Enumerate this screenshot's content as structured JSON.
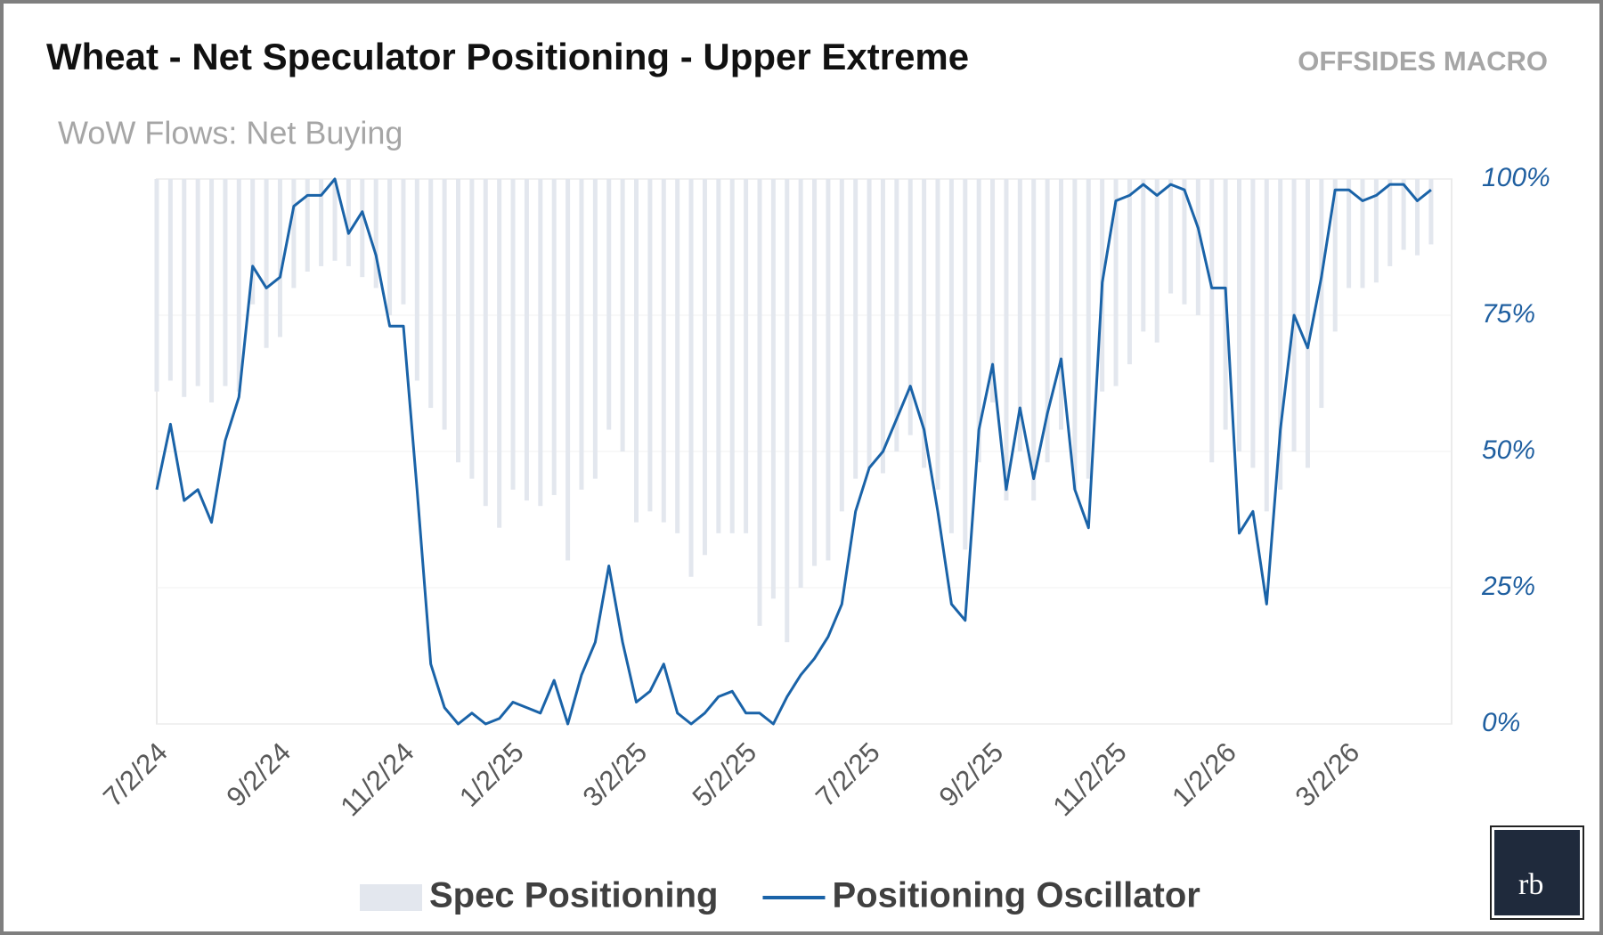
{
  "chart_data": {
    "type": "combo",
    "title": "Wheat - Net Speculator Positioning - Upper Extreme",
    "brand": "OFFSIDES MACRO",
    "subtitle": "WoW Flows: Net Buying",
    "logo": "rb",
    "categories": [
      "7/2/24",
      null,
      null,
      null,
      null,
      null,
      null,
      null,
      null,
      "9/2/24",
      null,
      null,
      null,
      null,
      null,
      null,
      null,
      null,
      "11/2/24",
      null,
      null,
      null,
      null,
      null,
      null,
      null,
      "1/2/25",
      null,
      null,
      null,
      null,
      null,
      null,
      null,
      null,
      "3/2/25",
      null,
      null,
      null,
      null,
      null,
      null,
      null,
      "5/2/25",
      null,
      null,
      null,
      null,
      null,
      null,
      null,
      null,
      "7/2/25",
      null,
      null,
      null,
      null,
      null,
      null,
      null,
      null,
      "9/2/25",
      null,
      null,
      null,
      null,
      null,
      null,
      null,
      null,
      "11/2/25",
      null,
      null,
      null,
      null,
      null,
      null,
      null,
      "1/2/26",
      null,
      null,
      null,
      null,
      null,
      null,
      null,
      null,
      "3/2/26",
      null,
      null,
      null,
      null,
      null,
      null
    ],
    "series": [
      {
        "name": "Spec Positioning",
        "type": "bar",
        "color": "#e3e7ee",
        "values": [
          61,
          63,
          60,
          62,
          59,
          62,
          61,
          77,
          69,
          71,
          80,
          83,
          84,
          85,
          84,
          82,
          80,
          75,
          77,
          63,
          58,
          54,
          48,
          45,
          40,
          36,
          43,
          41,
          40,
          42,
          30,
          43,
          45,
          54,
          50,
          37,
          39,
          37,
          35,
          27,
          31,
          35,
          35,
          35,
          18,
          23,
          15,
          25,
          29,
          30,
          39,
          45,
          47,
          46,
          50,
          53,
          47,
          43,
          35,
          32,
          48,
          59,
          41,
          50,
          41,
          48,
          54,
          43,
          45,
          61,
          62,
          66,
          72,
          70,
          79,
          77,
          75,
          48,
          54,
          50,
          47,
          39,
          43,
          50,
          47,
          58,
          72,
          80,
          80,
          81,
          84,
          87,
          86,
          88
        ]
      },
      {
        "name": "Positioning Oscillator",
        "type": "line",
        "color": "#1a63a8",
        "values": [
          43,
          55,
          41,
          43,
          37,
          52,
          60,
          84,
          80,
          82,
          95,
          97,
          97,
          100,
          90,
          94,
          86,
          73,
          73,
          43,
          11,
          3,
          0,
          2,
          0,
          1,
          4,
          3,
          2,
          8,
          0,
          9,
          15,
          29,
          15,
          4,
          6,
          11,
          2,
          0,
          2,
          5,
          6,
          2,
          2,
          0,
          5,
          9,
          12,
          16,
          22,
          39,
          47,
          50,
          56,
          62,
          54,
          39,
          22,
          19,
          54,
          66,
          43,
          58,
          45,
          57,
          67,
          43,
          36,
          81,
          96,
          97,
          99,
          97,
          99,
          98,
          91,
          80,
          80,
          35,
          39,
          22,
          54,
          75,
          69,
          82,
          98,
          98,
          96,
          97,
          99,
          99,
          96,
          98
        ]
      }
    ],
    "ylim": [
      0,
      100
    ],
    "yticks": [
      {
        "value": 0,
        "label": "0%"
      },
      {
        "value": 25,
        "label": "25%"
      },
      {
        "value": 50,
        "label": "50%"
      },
      {
        "value": 75,
        "label": "75%"
      },
      {
        "value": 100,
        "label": "100%"
      }
    ]
  }
}
